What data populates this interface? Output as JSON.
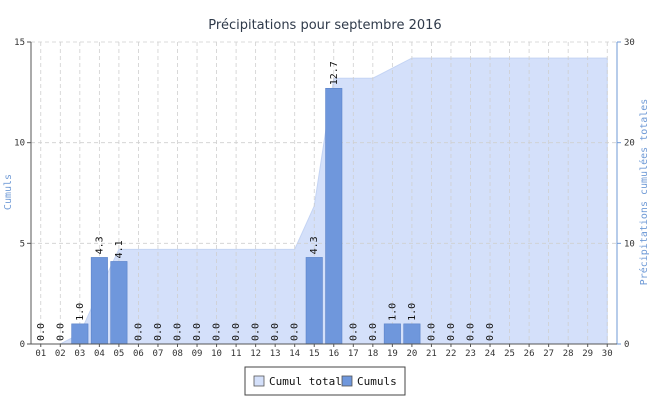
{
  "chart_data": {
    "type": "bar",
    "title": "Précipitations pour septembre 2016",
    "ylabel_left": "Cumuls",
    "ylabel_right": "Précipitations cumulées totales",
    "categories": [
      "01",
      "02",
      "03",
      "04",
      "05",
      "06",
      "07",
      "08",
      "09",
      "10",
      "11",
      "12",
      "13",
      "14",
      "15",
      "16",
      "17",
      "18",
      "19",
      "20",
      "21",
      "22",
      "23",
      "24",
      "25",
      "26",
      "27",
      "28",
      "29",
      "30"
    ],
    "ylim_left": [
      0,
      15
    ],
    "ylim_right": [
      0,
      30
    ],
    "yticks_left": [
      "0",
      "5",
      "10",
      "15"
    ],
    "yticks_right": [
      "0",
      "10",
      "20",
      "30"
    ],
    "grid": true,
    "legend_position": "bottom-center",
    "series": [
      {
        "name": "Cumul total",
        "type": "area",
        "axis": "right",
        "color": "#d4e0fa",
        "values": [
          0.0,
          0.0,
          1.0,
          5.3,
          9.4,
          9.4,
          9.4,
          9.4,
          9.4,
          9.4,
          9.4,
          9.4,
          9.4,
          9.4,
          13.7,
          26.4,
          26.4,
          26.4,
          27.4,
          28.4,
          28.4,
          28.4,
          28.4,
          28.4,
          28.4,
          28.4,
          28.4,
          28.4,
          28.4,
          28.4
        ]
      },
      {
        "name": "Cumuls",
        "type": "bar",
        "axis": "left",
        "color": "#6f97dc",
        "values": [
          0.0,
          0.0,
          1.0,
          4.3,
          4.1,
          0.0,
          0.0,
          0.0,
          0.0,
          0.0,
          0.0,
          0.0,
          0.0,
          0.0,
          4.3,
          12.7,
          0.0,
          0.0,
          1.0,
          1.0,
          0.0,
          0.0,
          0.0,
          0.0,
          null,
          null,
          null,
          null,
          null,
          null
        ],
        "labels": [
          "0.0",
          "0.0",
          "1.0",
          "4.3",
          "4.1",
          "0.0",
          "0.0",
          "0.0",
          "0.0",
          "0.0",
          "0.0",
          "0.0",
          "0.0",
          "0.0",
          "4.3",
          "12.7",
          "0.0",
          "0.0",
          "1.0",
          "1.0",
          "0.0",
          "0.0",
          "0.0",
          "0.0",
          "",
          "",
          "",
          "",
          "",
          ""
        ]
      }
    ]
  }
}
